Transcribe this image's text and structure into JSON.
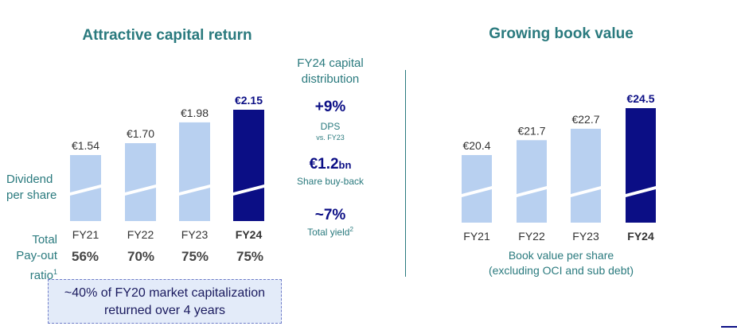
{
  "left": {
    "title": "Attractive capital return",
    "row_label_lines": [
      "Dividend",
      "per share"
    ],
    "payout_label_lines": [
      "Total",
      "Pay-out",
      "ratio"
    ],
    "payout_footnote": "1",
    "payout_values": [
      "56%",
      "70%",
      "75%",
      "75%"
    ],
    "callout_lines": [
      "~40% of FY20 market capitalization",
      "returned over 4 years"
    ]
  },
  "middle": {
    "header_lines": [
      "FY24 capital",
      "distribution"
    ],
    "items": [
      {
        "value": "+9%",
        "label": "DPS",
        "sublabel": "vs. FY23"
      },
      {
        "value": "€1.2",
        "value_suffix": "bn",
        "label": "Share buy-back"
      },
      {
        "value": "~7%",
        "label": "Total yield",
        "footnote": "2"
      }
    ]
  },
  "right": {
    "title": "Growing book value",
    "caption_lines": [
      "Book value per share",
      "(excluding OCI and sub debt)"
    ]
  },
  "colors": {
    "light_bar": "#b8d0f0",
    "dark_bar": "#0b0e85",
    "teal": "#2a7a7e",
    "navy": "#0b0e85"
  },
  "chart_data": [
    {
      "type": "bar",
      "categories": [
        "FY21",
        "FY22",
        "FY23",
        "FY24"
      ],
      "values": [
        1.54,
        1.7,
        1.98,
        2.15
      ],
      "value_labels": [
        "€1.54",
        "€1.70",
        "€1.98",
        "€2.15"
      ],
      "highlight_index": 3,
      "title": "Attractive capital return",
      "ylabel": "Dividend per share",
      "y_axis_break": true
    },
    {
      "type": "bar",
      "categories": [
        "FY21",
        "FY22",
        "FY23",
        "FY24"
      ],
      "values": [
        20.4,
        21.7,
        22.7,
        24.5
      ],
      "value_labels": [
        "€20.4",
        "€21.7",
        "€22.7",
        "€24.5"
      ],
      "highlight_index": 3,
      "title": "Growing book value",
      "xlabel": "Book value per share (excluding OCI and sub debt)",
      "y_axis_break": true
    }
  ]
}
